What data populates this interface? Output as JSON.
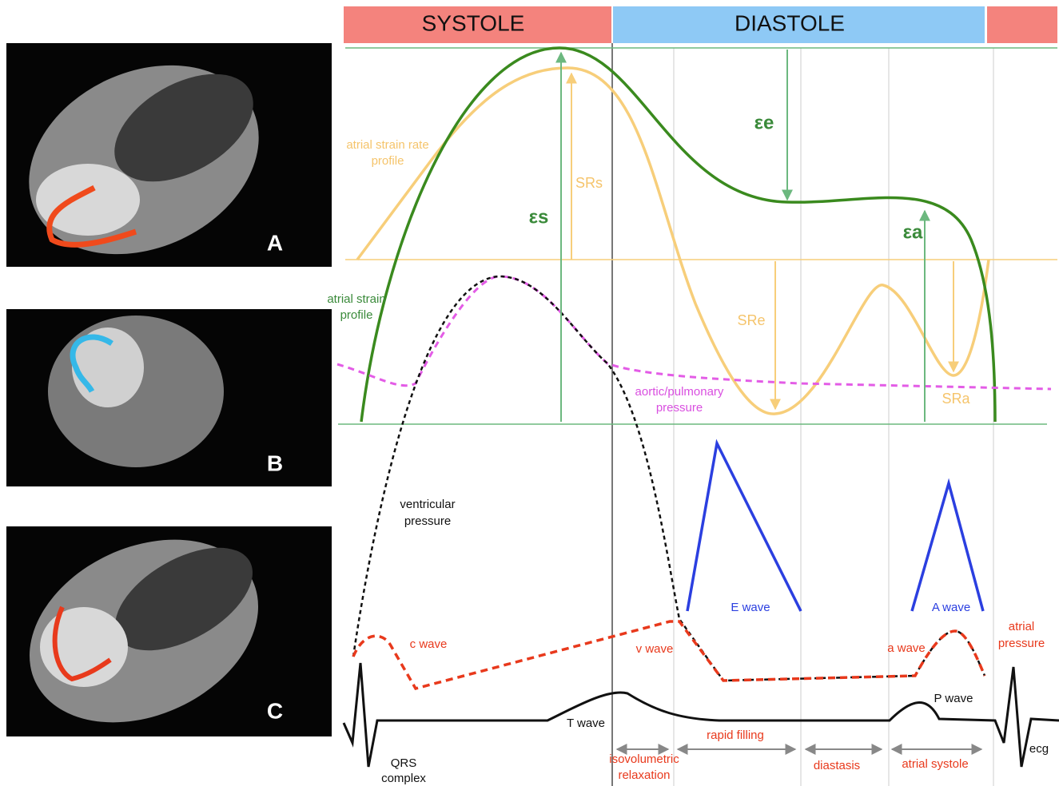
{
  "phases": {
    "systole": "SYSTOLE",
    "diastole": "DIASTOLE"
  },
  "panels": [
    "A",
    "B",
    "C"
  ],
  "labels": {
    "strain_rate_profile": [
      "atrial strain rate",
      "profile"
    ],
    "strain_profile": [
      "atrial strain",
      "profile"
    ],
    "srs": "SRs",
    "sre": "SRe",
    "sra": "SRa",
    "es": "εs",
    "ee": "εe",
    "ea": "εa",
    "aortic_pressure": [
      "aortic/pulmonary",
      "pressure"
    ],
    "ventricular_pressure": [
      "ventricular",
      "pressure"
    ],
    "e_wave": "E wave",
    "a_wave_doppler": "A wave",
    "c_wave": "c wave",
    "v_wave": "v wave",
    "a_wave": "a wave",
    "atrial_pressure": [
      "atrial",
      "pressure"
    ],
    "p_wave": "P wave",
    "t_wave": "T wave",
    "qrs": [
      "QRS",
      "complex"
    ],
    "ecg": "ecg",
    "isovolumetric": [
      "isovolumetric",
      "relaxation"
    ],
    "rapid_filling": "rapid filling",
    "diastasis": "diastasis",
    "atrial_systole": "atrial systole"
  }
}
